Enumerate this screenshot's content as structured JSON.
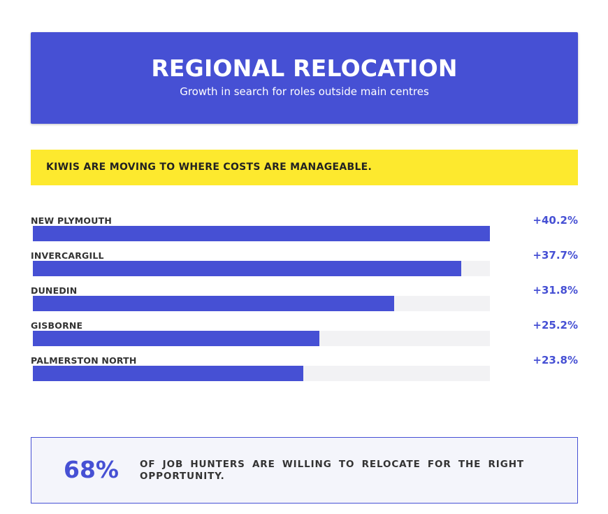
{
  "header": {
    "title": "REGIONAL RELOCATION",
    "subtitle": "Growth in search for roles outside main centres"
  },
  "banner": {
    "text": "KIWIS ARE MOVING TO WHERE COSTS ARE MANAGEABLE."
  },
  "chart_data": {
    "type": "bar",
    "orientation": "horizontal",
    "categories": [
      "NEW PLYMOUTH",
      "INVERCARGILL",
      "DUNEDIN",
      "GISBORNE",
      "PALMERSTON NORTH"
    ],
    "values": [
      40.2,
      37.7,
      31.8,
      25.2,
      23.8
    ],
    "value_labels": [
      "+40.2%",
      "+37.7%",
      "+31.8%",
      "+25.2%",
      "+23.8%"
    ],
    "xlim": [
      0,
      40.2
    ],
    "grid": false,
    "colors": {
      "bar": "#4650d4",
      "track": "#f2f2f4",
      "value": "#4650d4"
    }
  },
  "stat": {
    "value": "68%",
    "text": "OF JOB HUNTERS ARE WILLING TO RELOCATE FOR THE RIGHT OPPORTUNITY."
  },
  "colors": {
    "accent": "#4650d4",
    "banner": "#fde92e",
    "stat_bg": "#f4f5fb"
  }
}
